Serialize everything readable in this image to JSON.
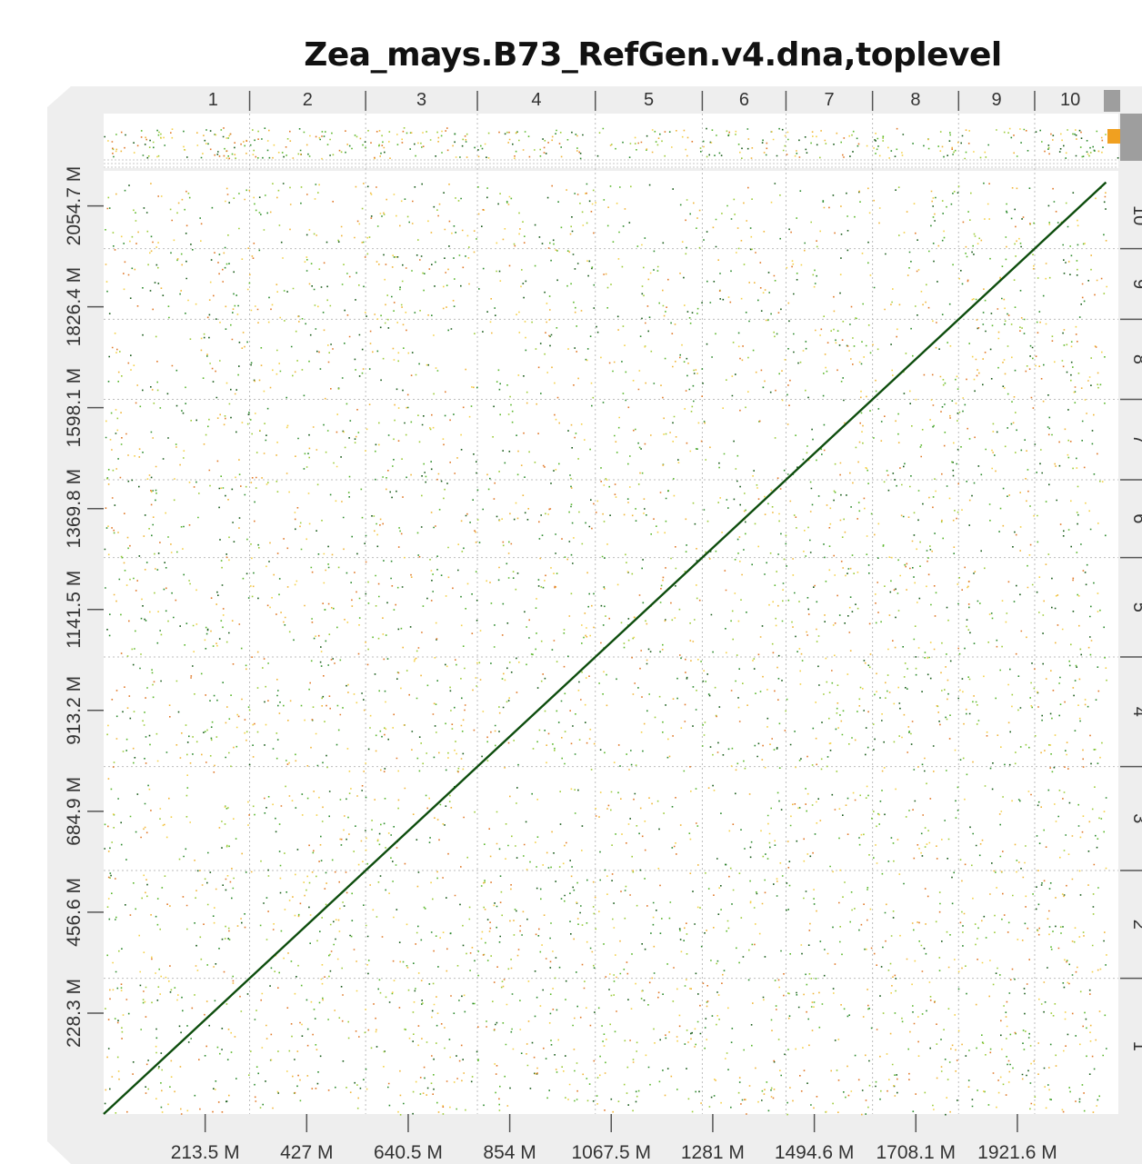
{
  "chart_data": {
    "type": "scatter",
    "title": "Zea_mays.B73_RefGen.v4.dna,toplevel",
    "xlabel": "",
    "ylabel": "",
    "x_unit": "M",
    "xlim": [
      0,
      2134
    ],
    "ylim": [
      0,
      2134
    ],
    "grid": true,
    "x_ticks": [
      213.5,
      427,
      640.5,
      854,
      1067.5,
      1281,
      1494.6,
      1708.1,
      1921.6
    ],
    "x_tick_labels": [
      "213.5 M",
      "427 M",
      "640.5 M",
      "854 M",
      "1067.5 M",
      "1281 M",
      "1494.6 M",
      "1708.1 M",
      "1921.6 M"
    ],
    "y_ticks": [
      228.3,
      456.6,
      684.9,
      913.2,
      1141.5,
      1369.8,
      1598.1,
      1826.4,
      2054.7
    ],
    "y_tick_labels": [
      "228.3 M",
      "456.6 M",
      "684.9 M",
      "913.2 M",
      "1141.5 M",
      "1369.8 M",
      "1598.1 M",
      "1826.4 M",
      "2054.7 M"
    ],
    "chromosomes_x": [
      {
        "name": "1",
        "start": 0,
        "end": 307
      },
      {
        "name": "2",
        "start": 307,
        "end": 551
      },
      {
        "name": "3",
        "start": 551,
        "end": 786
      },
      {
        "name": "4",
        "start": 786,
        "end": 1034
      },
      {
        "name": "5",
        "start": 1034,
        "end": 1259
      },
      {
        "name": "6",
        "start": 1259,
        "end": 1435
      },
      {
        "name": "7",
        "start": 1435,
        "end": 1617
      },
      {
        "name": "8",
        "start": 1617,
        "end": 1798
      },
      {
        "name": "9",
        "start": 1798,
        "end": 1958
      },
      {
        "name": "10",
        "start": 1958,
        "end": 2108
      }
    ],
    "chromosomes_y": [
      {
        "name": "1",
        "start": 0,
        "end": 307
      },
      {
        "name": "2",
        "start": 307,
        "end": 551
      },
      {
        "name": "3",
        "start": 551,
        "end": 786
      },
      {
        "name": "4",
        "start": 786,
        "end": 1034
      },
      {
        "name": "5",
        "start": 1034,
        "end": 1259
      },
      {
        "name": "6",
        "start": 1259,
        "end": 1435
      },
      {
        "name": "7",
        "start": 1435,
        "end": 1617
      },
      {
        "name": "8",
        "start": 1617,
        "end": 1798
      },
      {
        "name": "9",
        "start": 1798,
        "end": 1958
      },
      {
        "name": "10",
        "start": 1958,
        "end": 2108
      }
    ],
    "diagonal": {
      "x": [
        0,
        2108
      ],
      "y": [
        0,
        2108
      ]
    },
    "colors": {
      "diagonal": "#0d4d0d",
      "dots": [
        "#1a5c1a",
        "#2e8b2e",
        "#5cb82e",
        "#9ccc3a",
        "#f4d14a",
        "#f0b63a",
        "#e07a2a"
      ],
      "panel_background": "#eeeeee",
      "plot_background": "#ffffff"
    }
  }
}
